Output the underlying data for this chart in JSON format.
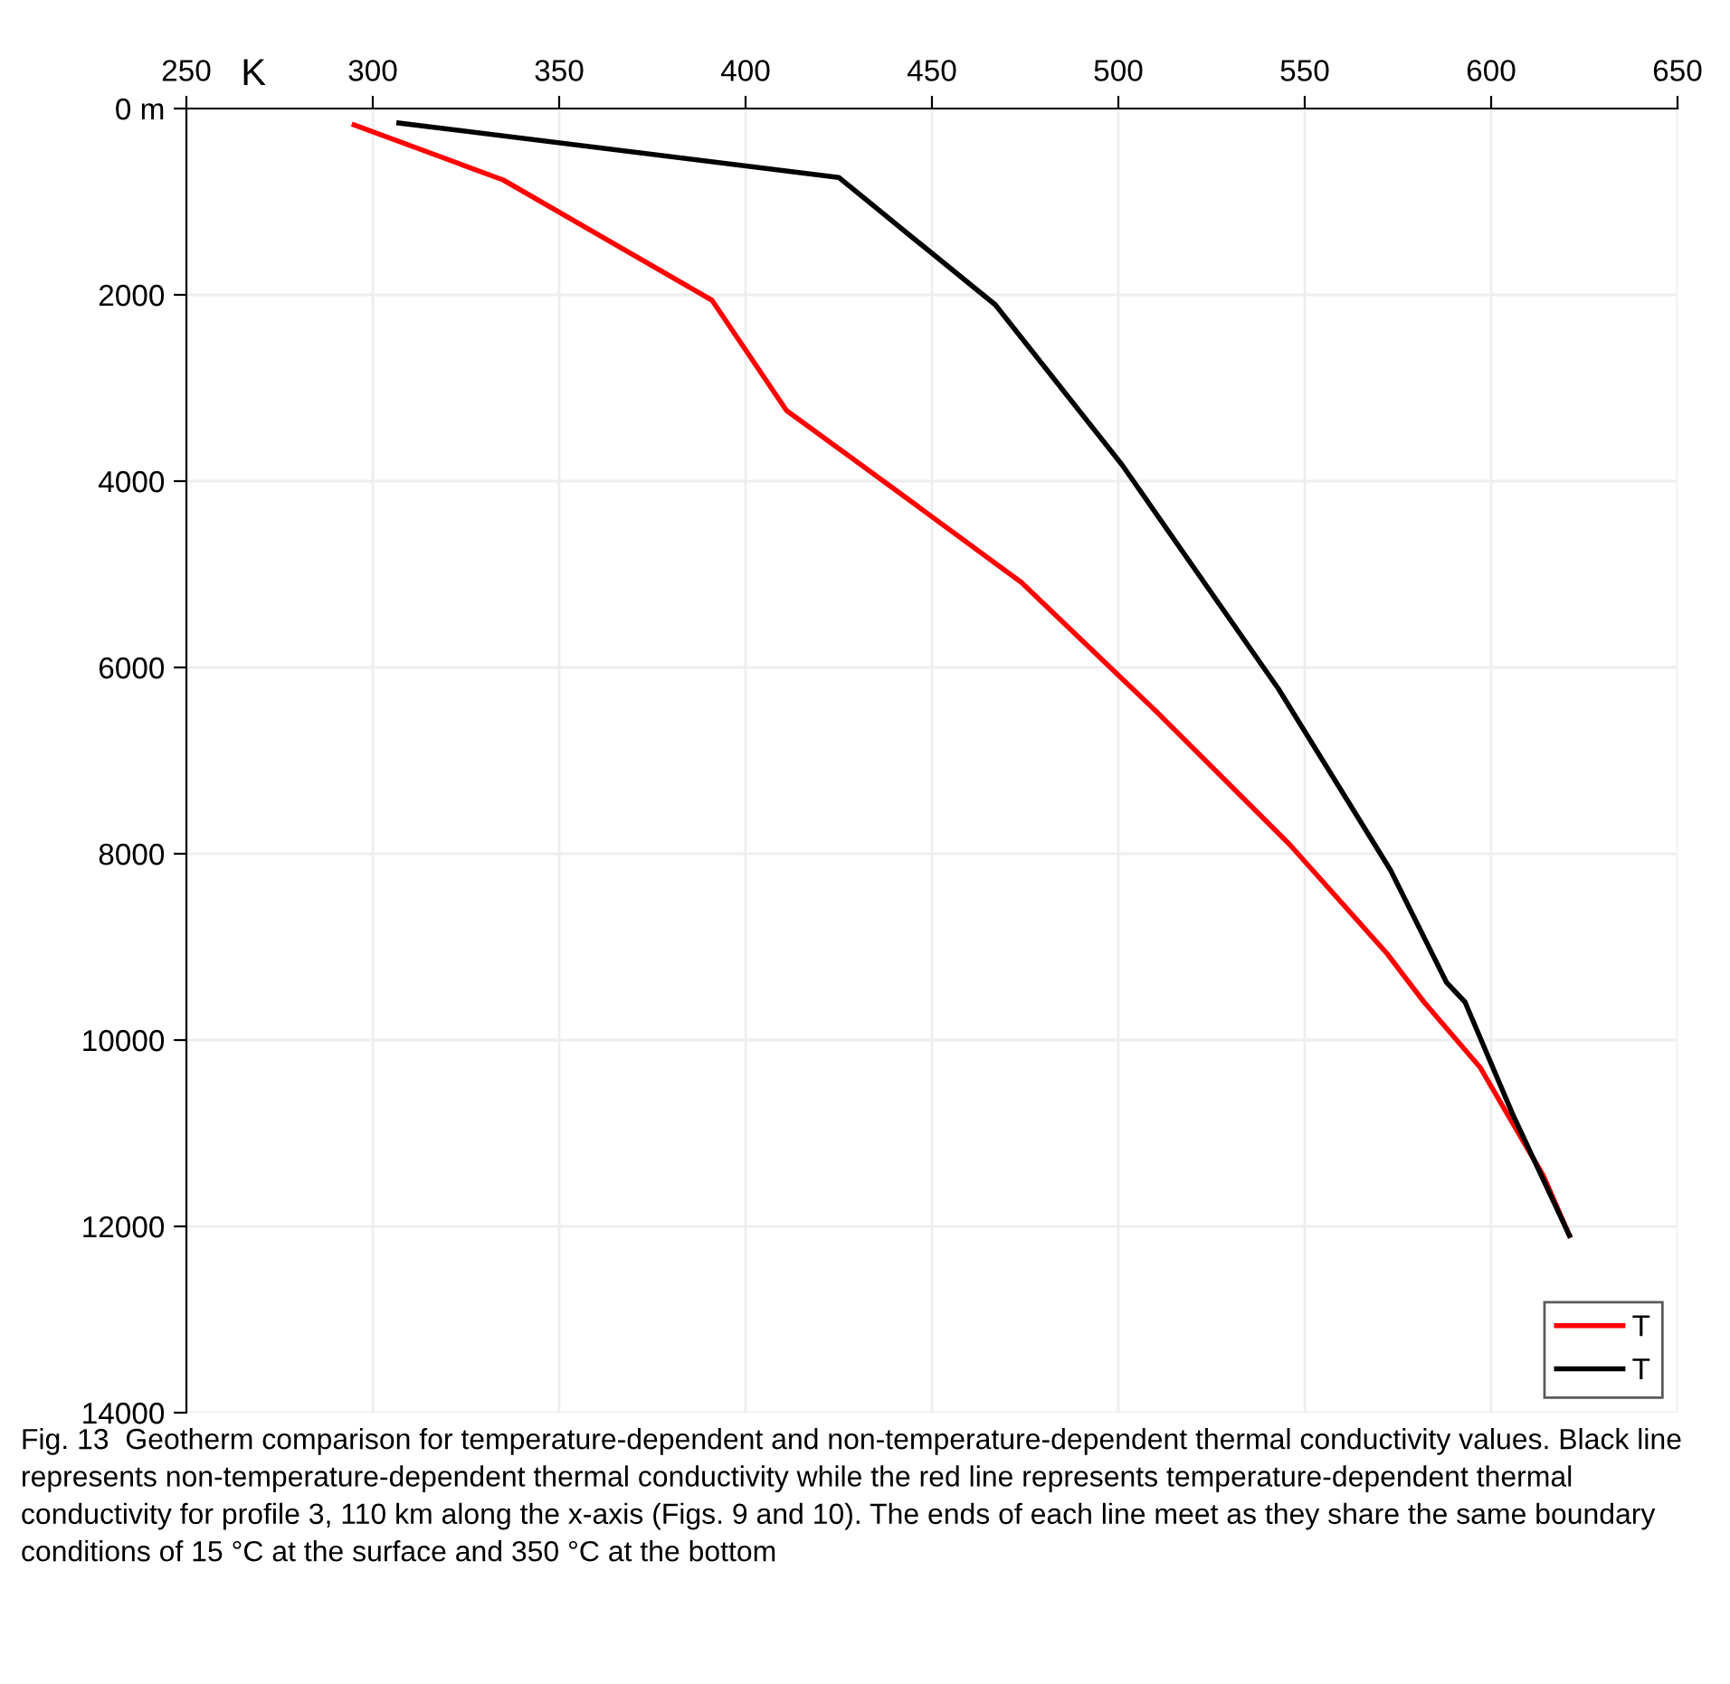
{
  "chart_data": {
    "type": "line",
    "xlabel": "K",
    "series": [
      {
        "name": "T",
        "color": "#ff0000",
        "x": [
          295,
          335,
          391,
          411,
          433,
          474,
          510,
          546,
          572,
          582,
          597,
          614,
          621
        ],
        "values": [
          175,
          767,
          2058,
          3243,
          3883,
          5087,
          6466,
          7903,
          9068,
          9592,
          10291,
          11456,
          12097
        ]
      },
      {
        "name": "T",
        "color": "#000000",
        "x": [
          307,
          425,
          444,
          467,
          501,
          543,
          573,
          588,
          593,
          606,
          621
        ],
        "values": [
          155,
          740,
          1359,
          2107,
          3825,
          6233,
          8175,
          9379,
          9592,
          10816,
          12097
        ]
      }
    ],
    "xlim": [
      250,
      650
    ],
    "xticks": [
      250,
      300,
      350,
      400,
      450,
      500,
      550,
      600,
      650
    ],
    "ylim": [
      14000,
      0
    ],
    "yticks": [
      {
        "value": 0,
        "label": "0 m"
      },
      2000,
      4000,
      6000,
      8000,
      10000,
      12000,
      14000
    ],
    "grid": true,
    "legend": "bottom right",
    "line_style": "solid",
    "marker": "none",
    "annotations": [
      "Fig. 13  Geotherm comparison for temperature-dependent and non-temperature-dependent thermal conductivity values. Black line represents non-temperature-dependent thermal conductivity while the red line represents temperature-dependent thermal conductivity for profile 3, 110 km along the x-axis (Figs. 9 and 10). The ends of each line meet as they share the same boundary conditions of 15 °C at the surface and 350 °C at the bottom"
    ]
  }
}
